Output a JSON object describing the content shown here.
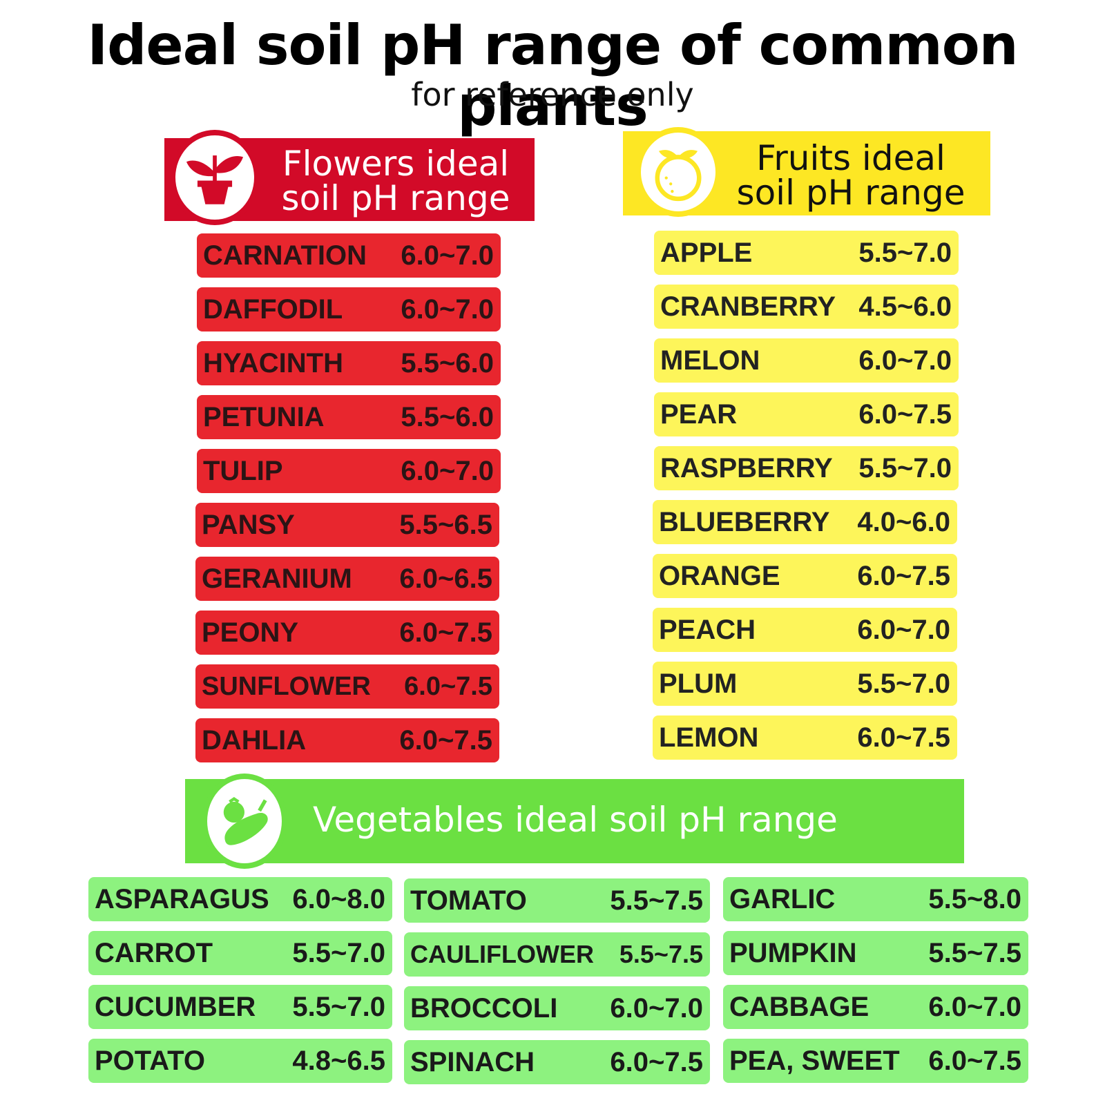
{
  "title": "Ideal soil pH range of common plants",
  "subtitle": "for reference only",
  "flowers": {
    "header": "Flowers ideal\nsoil pH range",
    "icon": "potted-plant-icon",
    "color": "#e8262e",
    "items": [
      {
        "name": "CARNATION",
        "range": "6.0~7.0"
      },
      {
        "name": "DAFFODIL",
        "range": "6.0~7.0"
      },
      {
        "name": "HYACINTH",
        "range": "5.5~6.0"
      },
      {
        "name": "PETUNIA",
        "range": "5.5~6.0"
      },
      {
        "name": "TULIP",
        "range": "6.0~7.0"
      },
      {
        "name": "PANSY",
        "range": "5.5~6.5"
      },
      {
        "name": "GERANIUM",
        "range": "6.0~6.5"
      },
      {
        "name": "PEONY",
        "range": "6.0~7.5"
      },
      {
        "name": "SUNFLOWER",
        "range": "6.0~7.5"
      },
      {
        "name": "DAHLIA",
        "range": "6.0~7.5"
      }
    ]
  },
  "fruits": {
    "header": "Fruits ideal\nsoil pH range",
    "icon": "orange-fruit-icon",
    "color": "#fdf55a",
    "items": [
      {
        "name": "APPLE",
        "range": "5.5~7.0"
      },
      {
        "name": "CRANBERRY",
        "range": "4.5~6.0"
      },
      {
        "name": "MELON",
        "range": "6.0~7.0"
      },
      {
        "name": "PEAR",
        "range": "6.0~7.5"
      },
      {
        "name": "RASPBERRY",
        "range": "5.5~7.0"
      },
      {
        "name": "BLUEBERRY",
        "range": "4.0~6.0"
      },
      {
        "name": "ORANGE",
        "range": "6.0~7.5"
      },
      {
        "name": "PEACH",
        "range": "6.0~7.0"
      },
      {
        "name": "PLUM",
        "range": "5.5~7.0"
      },
      {
        "name": "LEMON",
        "range": "6.0~7.5"
      }
    ]
  },
  "vegetables": {
    "header": "Vegetables ideal soil pH range",
    "icon": "vegetables-icon",
    "color": "#8df27f",
    "columns": [
      [
        {
          "name": "ASPARAGUS",
          "range": "6.0~8.0"
        },
        {
          "name": "CARROT",
          "range": "5.5~7.0"
        },
        {
          "name": "CUCUMBER",
          "range": "5.5~7.0"
        },
        {
          "name": "POTATO",
          "range": "4.8~6.5"
        }
      ],
      [
        {
          "name": "TOMATO",
          "range": "5.5~7.5"
        },
        {
          "name": "CAULIFLOWER",
          "range": "5.5~7.5"
        },
        {
          "name": "BROCCOLI",
          "range": "6.0~7.0"
        },
        {
          "name": "SPINACH",
          "range": "6.0~7.5"
        }
      ],
      [
        {
          "name": "GARLIC",
          "range": "5.5~8.0"
        },
        {
          "name": "PUMPKIN",
          "range": "5.5~7.5"
        },
        {
          "name": "CABBAGE",
          "range": "6.0~7.0"
        },
        {
          "name": "PEA, SWEET",
          "range": "6.0~7.5"
        }
      ]
    ]
  }
}
